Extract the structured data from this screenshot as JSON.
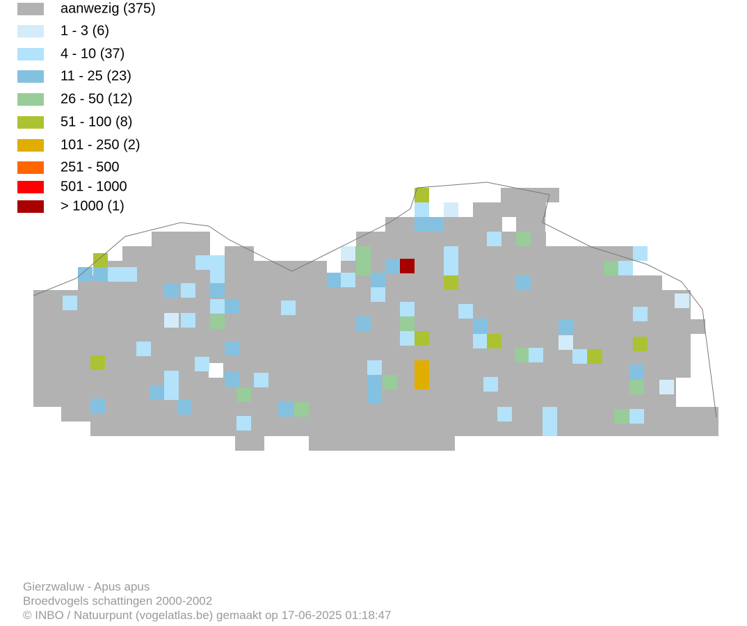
{
  "legend": [
    {
      "label": "aanwezig (375)",
      "color": "#b2b2b2"
    },
    {
      "label": "1 - 3 (6)",
      "color": "#d4ecfa"
    },
    {
      "label": "4 - 10 (37)",
      "color": "#b3e2fb"
    },
    {
      "label": "11 - 25 (23)",
      "color": "#84c1e1"
    },
    {
      "label": "26 - 50 (12)",
      "color": "#98cc98"
    },
    {
      "label": "51 - 100 (8)",
      "color": "#adc232"
    },
    {
      "label": "101 - 250 (2)",
      "color": "#e0ae00"
    },
    {
      "label": "251 - 500",
      "color": "#ff6600"
    },
    {
      "label": "501 - 1000",
      "color": "#ff0000"
    },
    {
      "label": "> 1000 (1)",
      "color": "#a80000"
    }
  ],
  "footer": [
    "Gierzwaluw - Apus apus",
    "Broedvogels schattingen 2000-2002",
    "© INBO / Natuurpunt (vogelatlas.be) gemaakt op 17-06-2025 01:18:47"
  ]
}
